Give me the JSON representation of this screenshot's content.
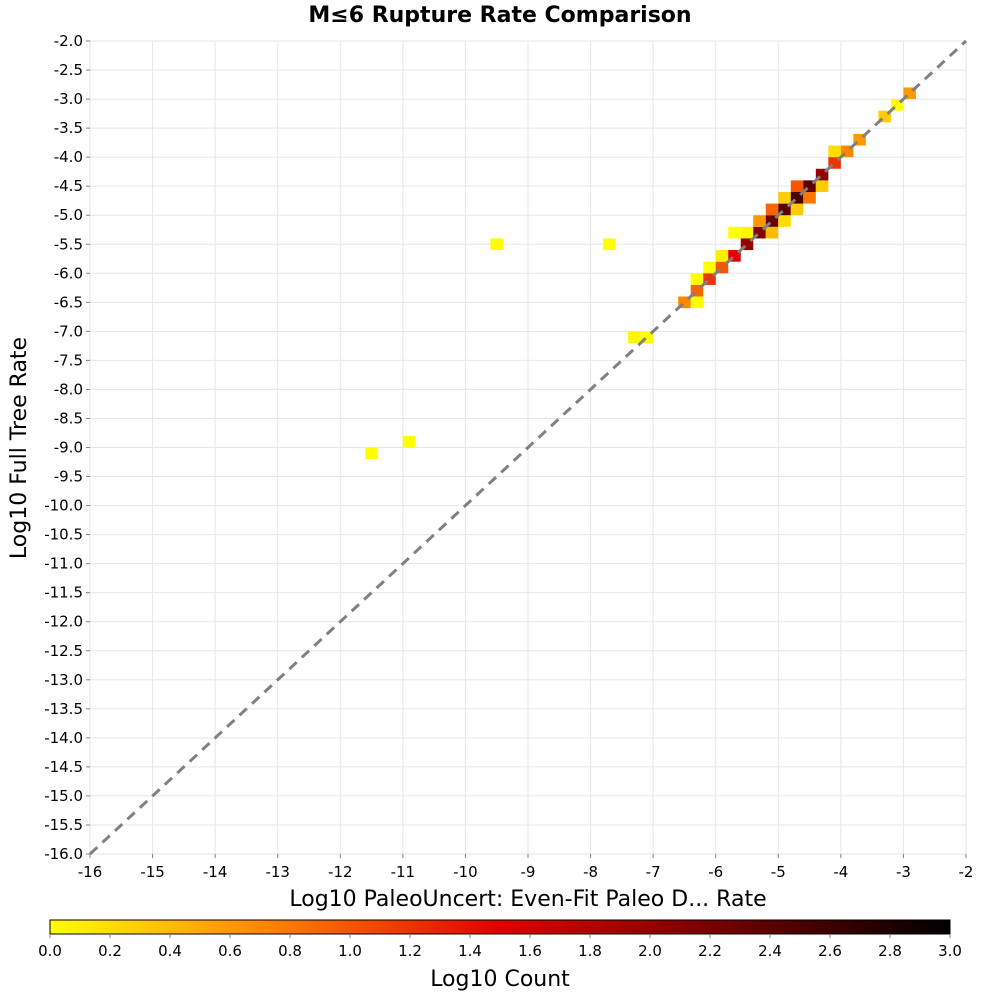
{
  "chart_data": {
    "type": "heatmap",
    "title": "M≤6 Rupture Rate Comparison",
    "xlabel": "Log10 PaleoUncert: Even-Fit Paleo D... Rate",
    "ylabel": "Log10 Full Tree Rate",
    "xlim": [
      -16,
      -2
    ],
    "ylim": [
      -16,
      -2
    ],
    "x_ticks": [
      -16,
      -15,
      -14,
      -13,
      -12,
      -11,
      -10,
      -9,
      -8,
      -7,
      -6,
      -5,
      -4,
      -3,
      -2
    ],
    "x_tick_labels": [
      "-16",
      "-15",
      "-14",
      "-13",
      "-12",
      "-11",
      "-10",
      "-9",
      "-8",
      "-7",
      "-6",
      "-5",
      "-4",
      "-3",
      "-2"
    ],
    "y_ticks": [
      -2.0,
      -2.5,
      -3.0,
      -3.5,
      -4.0,
      -4.5,
      -5.0,
      -5.5,
      -6.0,
      -6.5,
      -7.0,
      -7.5,
      -8.0,
      -8.5,
      -9.0,
      -9.5,
      -10.0,
      -10.5,
      -11.0,
      -11.5,
      -12.0,
      -12.5,
      -13.0,
      -13.5,
      -14.0,
      -14.5,
      -15.0,
      -15.5,
      -16.0
    ],
    "y_tick_labels": [
      "-2.0",
      "-2.5",
      "-3.0",
      "-3.5",
      "-4.0",
      "-4.5",
      "-5.0",
      "-5.5",
      "-6.0",
      "-6.5",
      "-7.0",
      "-7.5",
      "-8.0",
      "-8.5",
      "-9.0",
      "-9.5",
      "-10.0",
      "-10.5",
      "-11.0",
      "-11.5",
      "-12.0",
      "-12.5",
      "-13.0",
      "-13.5",
      "-14.0",
      "-14.5",
      "-15.0",
      "-15.5",
      "-16.0"
    ],
    "grid": true,
    "diagonal_reference_line": true,
    "bin_width": 0.2,
    "cells": [
      {
        "x": -11.5,
        "y": -9.1,
        "v": 0.0
      },
      {
        "x": -10.9,
        "y": -8.9,
        "v": 0.0
      },
      {
        "x": -9.5,
        "y": -5.5,
        "v": 0.0
      },
      {
        "x": -7.7,
        "y": -5.5,
        "v": 0.0
      },
      {
        "x": -7.3,
        "y": -7.1,
        "v": 0.05
      },
      {
        "x": -7.1,
        "y": -7.1,
        "v": 0.0
      },
      {
        "x": -6.5,
        "y": -6.5,
        "v": 0.7
      },
      {
        "x": -6.3,
        "y": -6.5,
        "v": 0.0
      },
      {
        "x": -6.3,
        "y": -6.3,
        "v": 0.9
      },
      {
        "x": -6.3,
        "y": -6.1,
        "v": 0.0
      },
      {
        "x": -6.1,
        "y": -6.1,
        "v": 1.2
      },
      {
        "x": -6.1,
        "y": -5.9,
        "v": 0.0
      },
      {
        "x": -5.9,
        "y": -5.9,
        "v": 1.0
      },
      {
        "x": -5.9,
        "y": -5.7,
        "v": 0.1
      },
      {
        "x": -5.7,
        "y": -5.7,
        "v": 1.5
      },
      {
        "x": -5.7,
        "y": -5.3,
        "v": 0.0
      },
      {
        "x": -5.5,
        "y": -5.3,
        "v": 0.05
      },
      {
        "x": -5.5,
        "y": -5.5,
        "v": 2.0
      },
      {
        "x": -5.3,
        "y": -5.3,
        "v": 2.1
      },
      {
        "x": -5.3,
        "y": -5.1,
        "v": 0.6
      },
      {
        "x": -5.1,
        "y": -5.3,
        "v": 0.4
      },
      {
        "x": -5.1,
        "y": -5.1,
        "v": 2.3
      },
      {
        "x": -5.1,
        "y": -4.9,
        "v": 0.9
      },
      {
        "x": -4.9,
        "y": -5.1,
        "v": 0.2
      },
      {
        "x": -4.9,
        "y": -4.9,
        "v": 2.4
      },
      {
        "x": -4.9,
        "y": -4.7,
        "v": 0.3
      },
      {
        "x": -4.7,
        "y": -4.9,
        "v": 0.3
      },
      {
        "x": -4.7,
        "y": -4.7,
        "v": 2.5
      },
      {
        "x": -4.7,
        "y": -4.5,
        "v": 1.0
      },
      {
        "x": -4.5,
        "y": -4.7,
        "v": 0.8
      },
      {
        "x": -4.5,
        "y": -4.5,
        "v": 2.4
      },
      {
        "x": -4.3,
        "y": -4.5,
        "v": 0.3
      },
      {
        "x": -4.3,
        "y": -4.3,
        "v": 2.0
      },
      {
        "x": -4.1,
        "y": -4.1,
        "v": 1.2
      },
      {
        "x": -4.1,
        "y": -3.9,
        "v": 0.2
      },
      {
        "x": -3.9,
        "y": -3.9,
        "v": 0.7
      },
      {
        "x": -3.7,
        "y": -3.7,
        "v": 0.6
      },
      {
        "x": -3.3,
        "y": -3.3,
        "v": 0.3
      },
      {
        "x": -3.1,
        "y": -3.1,
        "v": 0.0
      },
      {
        "x": -2.9,
        "y": -2.9,
        "v": 0.6
      }
    ],
    "colorbar": {
      "label": "Log10 Count",
      "range": [
        0.0,
        3.0
      ],
      "ticks": [
        0.0,
        0.2,
        0.4,
        0.6,
        0.8,
        1.0,
        1.2,
        1.4,
        1.6,
        1.8,
        2.0,
        2.2,
        2.4,
        2.6,
        2.8,
        3.0
      ],
      "tick_labels": [
        "0.0",
        "0.2",
        "0.4",
        "0.6",
        "0.8",
        "1.0",
        "1.2",
        "1.4",
        "1.6",
        "1.8",
        "2.0",
        "2.2",
        "2.4",
        "2.6",
        "2.8",
        "3.0"
      ],
      "colors": [
        "#ffff00",
        "#ff8000",
        "#e00000",
        "#700000",
        "#000000"
      ]
    }
  }
}
